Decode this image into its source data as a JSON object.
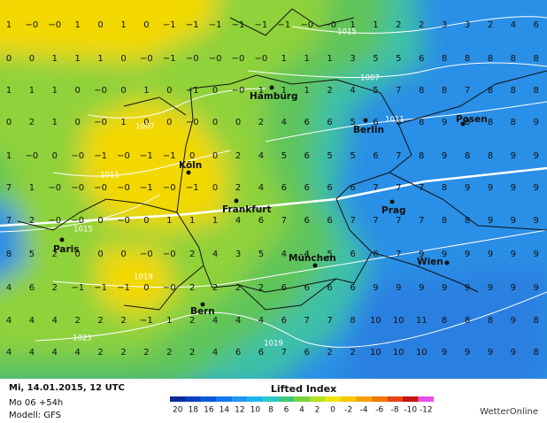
{
  "map": {
    "grid_rows": [
      [
        "1",
        "−0",
        "−0",
        "1",
        "0",
        "1",
        "0",
        "−1",
        "−1",
        "−1",
        "−1",
        "−1",
        "−1",
        "−0",
        "−0",
        "1",
        "1",
        "2",
        "2",
        "3",
        "3",
        "2",
        "4",
        "6"
      ],
      [
        "0",
        "0",
        "1",
        "1",
        "1",
        "0",
        "−0",
        "−1",
        "−0",
        "−0",
        "−0",
        "−0",
        "1",
        "1",
        "1",
        "3",
        "5",
        "5",
        "6",
        "8",
        "8",
        "8",
        "8",
        "8"
      ],
      [
        "1",
        "1",
        "1",
        "0",
        "−0",
        "0",
        "1",
        "0",
        "−1",
        "0",
        "−0",
        "1",
        "1",
        "1",
        "2",
        "4",
        "5",
        "7",
        "8",
        "8",
        "7",
        "8",
        "8",
        "8"
      ],
      [
        "0",
        "2",
        "1",
        "0",
        "−0",
        "1",
        "0",
        "0",
        "−0",
        "0",
        "0",
        "2",
        "4",
        "6",
        "6",
        "5",
        "6",
        "6",
        "8",
        "9",
        "8",
        "8",
        "8",
        "9"
      ],
      [
        "1",
        "−0",
        "0",
        "−0",
        "−1",
        "−0",
        "−1",
        "−1",
        "0",
        "0",
        "2",
        "4",
        "5",
        "6",
        "5",
        "5",
        "6",
        "7",
        "8",
        "9",
        "8",
        "8",
        "9",
        "9"
      ],
      [
        "7",
        "1",
        "−0",
        "−0",
        "−0",
        "−0",
        "−1",
        "−0",
        "−1",
        "0",
        "2",
        "4",
        "6",
        "6",
        "6",
        "6",
        "7",
        "7",
        "7",
        "8",
        "9",
        "9",
        "9",
        "9"
      ],
      [
        "7",
        "2",
        "−0",
        "−0",
        "0",
        "−0",
        "0",
        "1",
        "1",
        "1",
        "4",
        "6",
        "7",
        "6",
        "6",
        "7",
        "7",
        "7",
        "7",
        "8",
        "8",
        "9",
        "9",
        "9"
      ],
      [
        "8",
        "5",
        "2",
        "0",
        "0",
        "0",
        "−0",
        "−0",
        "2",
        "4",
        "3",
        "5",
        "4",
        "4",
        "5",
        "6",
        "6",
        "7",
        "9",
        "9",
        "9",
        "9",
        "9",
        "9"
      ],
      [
        "4",
        "6",
        "2",
        "−1",
        "−1",
        "−1",
        "0",
        "−0",
        "2",
        "2",
        "2",
        "2",
        "6",
        "6",
        "6",
        "6",
        "9",
        "9",
        "9",
        "9",
        "9",
        "9",
        "9",
        "9"
      ],
      [
        "4",
        "4",
        "4",
        "2",
        "2",
        "2",
        "−1",
        "1",
        "2",
        "4",
        "4",
        "4",
        "6",
        "7",
        "7",
        "8",
        "10",
        "10",
        "11",
        "8",
        "8",
        "8",
        "9",
        "8"
      ],
      [
        "4",
        "4",
        "4",
        "4",
        "2",
        "2",
        "2",
        "2",
        "2",
        "4",
        "6",
        "6",
        "7",
        "6",
        "2",
        "2",
        "10",
        "10",
        "10",
        "9",
        "9",
        "9",
        "9",
        "8"
      ]
    ],
    "cities": [
      "Hamburg",
      "Berlin",
      "Posen",
      "Köln",
      "Frankfurt",
      "Prag",
      "Paris",
      "Wien",
      "München",
      "Bern"
    ],
    "isobars": [
      "1015",
      "1007",
      "1011",
      "1007",
      "1011",
      "1015",
      "1019",
      "1023",
      "1019"
    ]
  },
  "footer": {
    "date": "Mi, 14.01.2015, 12 UTC",
    "run": "Mo 06 +54h",
    "model": "Modell: GFS",
    "legend_title": "Lifted Index",
    "legend_labels": [
      "20",
      "18",
      "16",
      "14",
      "12",
      "10",
      "8",
      "6",
      "4",
      "2",
      "0",
      "-2",
      "-4",
      "-6",
      "-8",
      "-10",
      "-12"
    ],
    "brand": "WetterOnline"
  }
}
